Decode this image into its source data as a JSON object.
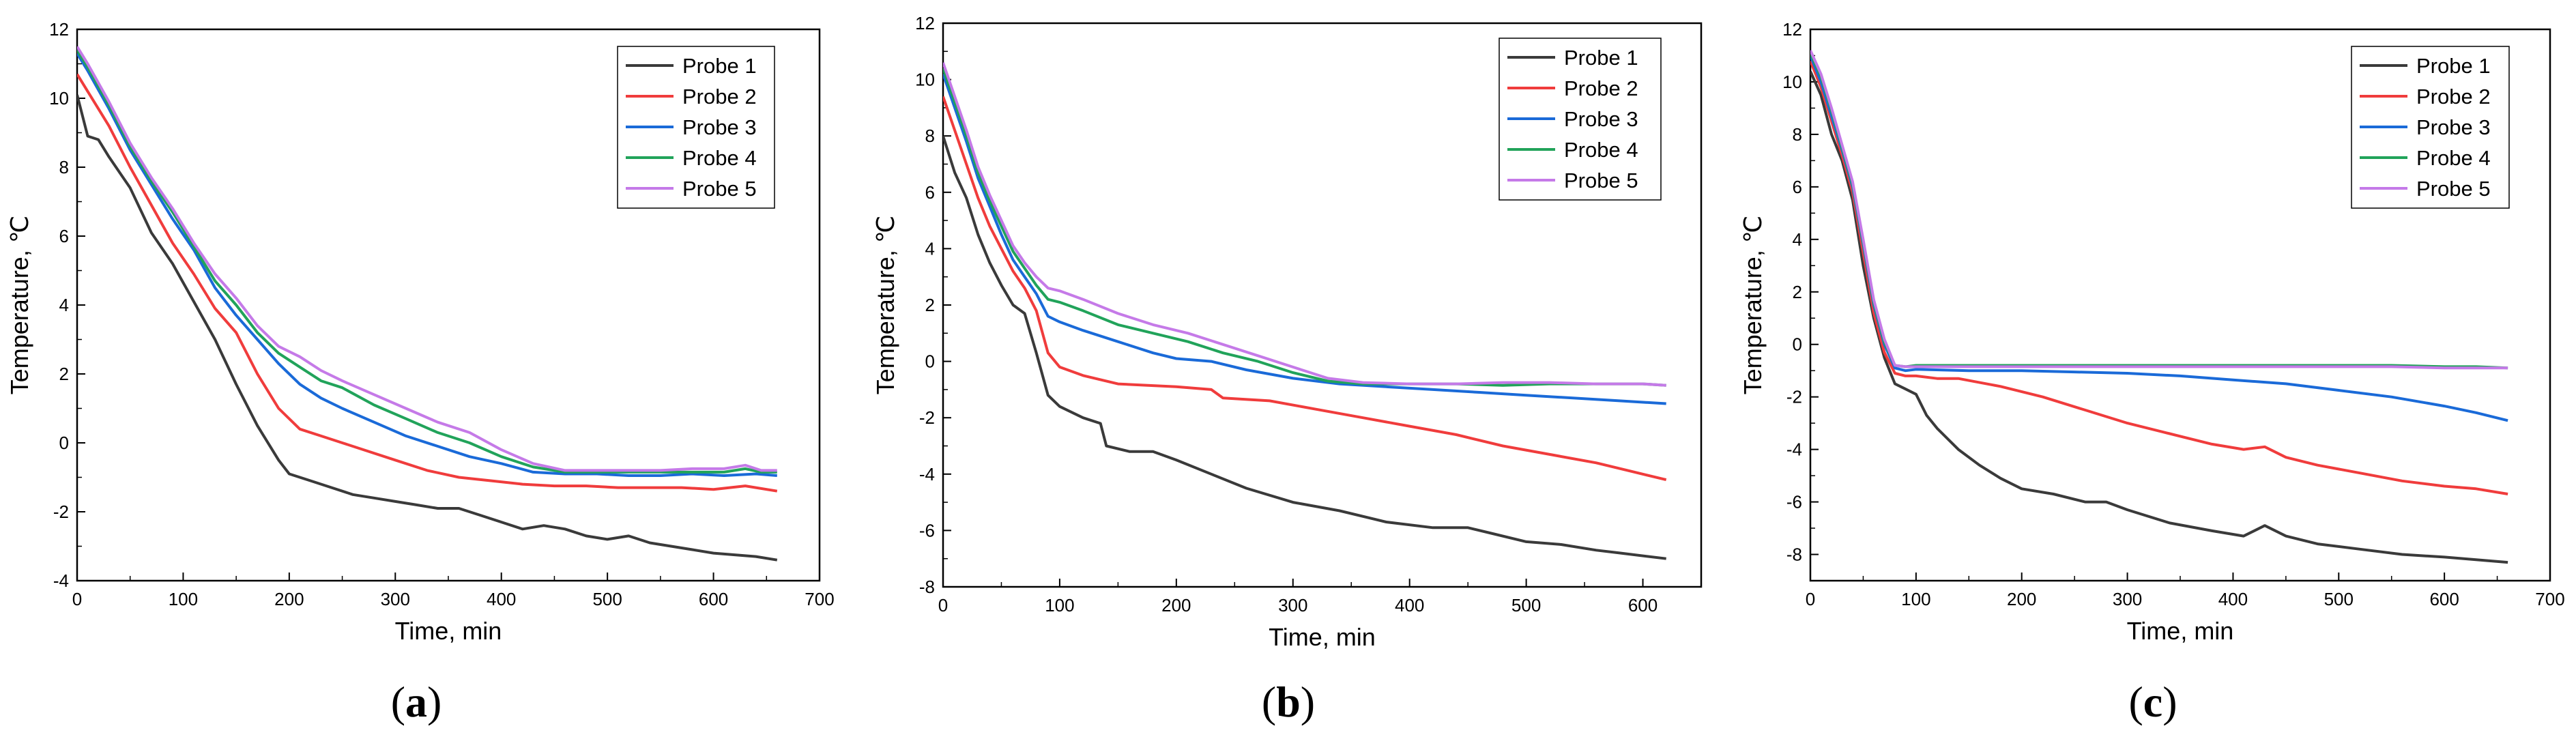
{
  "colors": {
    "probe1": "#3a3a3a",
    "probe2": "#f03c3c",
    "probe3": "#1a6ad8",
    "probe4": "#21a35a",
    "probe5": "#c57ae8"
  },
  "chart_data": [
    {
      "type": "line",
      "panel_label": "a",
      "xlabel": "Time, min",
      "ylabel": "Temperature, ℃",
      "xlim": [
        0,
        700
      ],
      "ylim": [
        -4,
        12
      ],
      "xticks": [
        0,
        100,
        200,
        300,
        400,
        500,
        600,
        700
      ],
      "yticks": [
        -4,
        -2,
        0,
        2,
        4,
        6,
        8,
        10,
        12
      ],
      "legend_position": "top-right",
      "series": [
        {
          "name": "Probe 1",
          "color_key": "probe1",
          "x": [
            0,
            10,
            20,
            30,
            50,
            70,
            90,
            110,
            130,
            150,
            170,
            190,
            200,
            210,
            220,
            240,
            260,
            280,
            300,
            320,
            340,
            360,
            380,
            400,
            420,
            440,
            460,
            480,
            500,
            520,
            540,
            560,
            580,
            600,
            620,
            640,
            660
          ],
          "y": [
            10.1,
            8.9,
            8.8,
            8.3,
            7.4,
            6.1,
            5.2,
            4.1,
            3.0,
            1.7,
            0.5,
            -0.5,
            -0.9,
            -1.0,
            -1.1,
            -1.3,
            -1.5,
            -1.6,
            -1.7,
            -1.8,
            -1.9,
            -1.9,
            -2.1,
            -2.3,
            -2.5,
            -2.4,
            -2.5,
            -2.7,
            -2.8,
            -2.7,
            -2.9,
            -3.0,
            -3.1,
            -3.2,
            -3.25,
            -3.3,
            -3.4
          ]
        },
        {
          "name": "Probe 2",
          "color_key": "probe2",
          "x": [
            0,
            10,
            30,
            50,
            70,
            90,
            110,
            130,
            150,
            170,
            190,
            210,
            230,
            250,
            270,
            300,
            330,
            360,
            390,
            420,
            450,
            480,
            510,
            540,
            570,
            600,
            630,
            660
          ],
          "y": [
            10.7,
            10.2,
            9.2,
            8.0,
            6.9,
            5.8,
            4.9,
            3.9,
            3.2,
            2.0,
            1.0,
            0.4,
            0.2,
            0.0,
            -0.2,
            -0.5,
            -0.8,
            -1.0,
            -1.1,
            -1.2,
            -1.25,
            -1.25,
            -1.3,
            -1.3,
            -1.3,
            -1.35,
            -1.25,
            -1.4
          ]
        },
        {
          "name": "Probe 3",
          "color_key": "probe3",
          "x": [
            0,
            10,
            30,
            50,
            70,
            90,
            110,
            130,
            150,
            170,
            190,
            210,
            230,
            250,
            280,
            310,
            340,
            370,
            400,
            430,
            460,
            490,
            520,
            550,
            580,
            610,
            640,
            660
          ],
          "y": [
            11.3,
            10.8,
            9.7,
            8.5,
            7.5,
            6.5,
            5.6,
            4.5,
            3.7,
            3.0,
            2.3,
            1.7,
            1.3,
            1.0,
            0.6,
            0.2,
            -0.1,
            -0.4,
            -0.6,
            -0.85,
            -0.9,
            -0.9,
            -0.95,
            -0.95,
            -0.9,
            -0.95,
            -0.9,
            -0.95
          ]
        },
        {
          "name": "Probe 4",
          "color_key": "probe4",
          "x": [
            0,
            10,
            30,
            50,
            70,
            90,
            110,
            130,
            150,
            170,
            190,
            210,
            230,
            250,
            280,
            310,
            340,
            370,
            400,
            430,
            460,
            490,
            520,
            550,
            580,
            610,
            630,
            645,
            660
          ],
          "y": [
            11.4,
            10.9,
            9.8,
            8.6,
            7.6,
            6.7,
            5.7,
            4.7,
            4.0,
            3.2,
            2.6,
            2.2,
            1.8,
            1.6,
            1.1,
            0.7,
            0.3,
            0.0,
            -0.4,
            -0.7,
            -0.85,
            -0.85,
            -0.85,
            -0.85,
            -0.85,
            -0.85,
            -0.75,
            -0.85,
            -0.85
          ]
        },
        {
          "name": "Probe 5",
          "color_key": "probe5",
          "x": [
            0,
            10,
            30,
            50,
            70,
            90,
            110,
            130,
            150,
            170,
            190,
            210,
            230,
            250,
            280,
            310,
            340,
            370,
            400,
            430,
            460,
            490,
            520,
            550,
            580,
            610,
            630,
            645,
            660
          ],
          "y": [
            11.5,
            11.0,
            9.9,
            8.7,
            7.7,
            6.8,
            5.8,
            4.9,
            4.2,
            3.4,
            2.8,
            2.5,
            2.1,
            1.8,
            1.4,
            1.0,
            0.6,
            0.3,
            -0.2,
            -0.6,
            -0.8,
            -0.8,
            -0.8,
            -0.8,
            -0.75,
            -0.75,
            -0.65,
            -0.8,
            -0.8
          ]
        }
      ]
    },
    {
      "type": "line",
      "panel_label": "b",
      "xlabel": "Time, min",
      "ylabel": "Temperature, ℃",
      "xlim": [
        0,
        650
      ],
      "ylim": [
        -8,
        12
      ],
      "xticks": [
        0,
        100,
        200,
        300,
        400,
        500,
        600
      ],
      "yticks": [
        -8,
        -6,
        -4,
        -2,
        0,
        2,
        4,
        6,
        8,
        10,
        12
      ],
      "legend_position": "top-right",
      "series": [
        {
          "name": "Probe 1",
          "color_key": "probe1",
          "x": [
            0,
            10,
            20,
            30,
            40,
            50,
            60,
            70,
            80,
            90,
            100,
            120,
            135,
            140,
            160,
            180,
            200,
            230,
            260,
            300,
            340,
            380,
            420,
            450,
            470,
            500,
            530,
            560,
            580,
            620
          ],
          "y": [
            8.0,
            6.7,
            5.8,
            4.5,
            3.5,
            2.7,
            2.0,
            1.7,
            0.3,
            -1.2,
            -1.6,
            -2.0,
            -2.2,
            -3.0,
            -3.2,
            -3.2,
            -3.5,
            -4.0,
            -4.5,
            -5.0,
            -5.3,
            -5.7,
            -5.9,
            -5.9,
            -6.1,
            -6.4,
            -6.5,
            -6.7,
            -6.8,
            -7.0
          ]
        },
        {
          "name": "Probe 2",
          "color_key": "probe2",
          "x": [
            0,
            10,
            20,
            30,
            40,
            50,
            60,
            70,
            80,
            90,
            100,
            120,
            150,
            200,
            230,
            240,
            280,
            320,
            360,
            400,
            440,
            480,
            520,
            560,
            590,
            620
          ],
          "y": [
            9.4,
            8.2,
            7.0,
            5.8,
            4.8,
            4.0,
            3.2,
            2.6,
            1.8,
            0.3,
            -0.2,
            -0.5,
            -0.8,
            -0.9,
            -1.0,
            -1.3,
            -1.4,
            -1.7,
            -2.0,
            -2.3,
            -2.6,
            -3.0,
            -3.3,
            -3.6,
            -3.9,
            -4.2
          ]
        },
        {
          "name": "Probe 3",
          "color_key": "probe3",
          "x": [
            0,
            10,
            20,
            30,
            40,
            50,
            60,
            70,
            80,
            90,
            100,
            120,
            150,
            180,
            200,
            230,
            260,
            300,
            340,
            380,
            420,
            460,
            500,
            540,
            580,
            620
          ],
          "y": [
            10.2,
            9.0,
            7.8,
            6.5,
            5.5,
            4.5,
            3.6,
            3.0,
            2.4,
            1.6,
            1.4,
            1.1,
            0.7,
            0.3,
            0.1,
            0.0,
            -0.3,
            -0.6,
            -0.8,
            -0.9,
            -1.0,
            -1.1,
            -1.2,
            -1.3,
            -1.4,
            -1.5
          ]
        },
        {
          "name": "Probe 4",
          "color_key": "probe4",
          "x": [
            0,
            10,
            20,
            30,
            40,
            50,
            60,
            70,
            80,
            90,
            100,
            120,
            150,
            180,
            210,
            240,
            270,
            300,
            330,
            360,
            400,
            440,
            480,
            520,
            560,
            600,
            620
          ],
          "y": [
            10.4,
            9.2,
            8.0,
            6.7,
            5.7,
            4.8,
            3.9,
            3.3,
            2.7,
            2.2,
            2.1,
            1.8,
            1.3,
            1.0,
            0.7,
            0.3,
            0.0,
            -0.4,
            -0.7,
            -0.8,
            -0.8,
            -0.8,
            -0.85,
            -0.8,
            -0.8,
            -0.8,
            -0.85
          ]
        },
        {
          "name": "Probe 5",
          "color_key": "probe5",
          "x": [
            0,
            10,
            20,
            30,
            40,
            50,
            60,
            70,
            80,
            90,
            100,
            120,
            150,
            180,
            210,
            240,
            270,
            300,
            330,
            360,
            400,
            440,
            480,
            520,
            560,
            600,
            620
          ],
          "y": [
            10.6,
            9.4,
            8.2,
            6.9,
            5.9,
            5.0,
            4.1,
            3.5,
            3.0,
            2.6,
            2.5,
            2.2,
            1.7,
            1.3,
            1.0,
            0.6,
            0.2,
            -0.2,
            -0.6,
            -0.75,
            -0.8,
            -0.8,
            -0.75,
            -0.75,
            -0.8,
            -0.8,
            -0.85
          ]
        }
      ]
    },
    {
      "type": "line",
      "panel_label": "c",
      "xlabel": "Time, min",
      "ylabel": "Temperature, ℃",
      "xlim": [
        0,
        700
      ],
      "ylim": [
        -9,
        12
      ],
      "xticks": [
        0,
        100,
        200,
        300,
        400,
        500,
        600,
        700
      ],
      "yticks": [
        -8,
        -6,
        -4,
        -2,
        0,
        2,
        4,
        6,
        8,
        10,
        12
      ],
      "legend_position": "top-right",
      "series": [
        {
          "name": "Probe 1",
          "color_key": "probe1",
          "x": [
            0,
            10,
            20,
            30,
            40,
            50,
            60,
            70,
            80,
            90,
            100,
            110,
            120,
            140,
            160,
            180,
            200,
            230,
            260,
            280,
            300,
            340,
            380,
            410,
            430,
            450,
            480,
            520,
            560,
            600,
            630,
            660
          ],
          "y": [
            10.4,
            9.5,
            8.0,
            7.0,
            5.5,
            3.0,
            1.0,
            -0.5,
            -1.5,
            -1.7,
            -1.9,
            -2.7,
            -3.2,
            -4.0,
            -4.6,
            -5.1,
            -5.5,
            -5.7,
            -6.0,
            -6.0,
            -6.3,
            -6.8,
            -7.1,
            -7.3,
            -6.9,
            -7.3,
            -7.6,
            -7.8,
            -8.0,
            -8.1,
            -8.2,
            -8.3
          ]
        },
        {
          "name": "Probe 2",
          "color_key": "probe2",
          "x": [
            0,
            10,
            20,
            30,
            40,
            50,
            60,
            70,
            80,
            90,
            100,
            120,
            140,
            180,
            220,
            260,
            300,
            340,
            380,
            410,
            430,
            450,
            480,
            520,
            560,
            600,
            630,
            660
          ],
          "y": [
            10.8,
            9.8,
            8.5,
            7.2,
            5.8,
            3.5,
            1.2,
            -0.3,
            -1.1,
            -1.2,
            -1.2,
            -1.3,
            -1.3,
            -1.6,
            -2.0,
            -2.5,
            -3.0,
            -3.4,
            -3.8,
            -4.0,
            -3.9,
            -4.3,
            -4.6,
            -4.9,
            -5.2,
            -5.4,
            -5.5,
            -5.7
          ]
        },
        {
          "name": "Probe 3",
          "color_key": "probe3",
          "x": [
            0,
            10,
            20,
            30,
            40,
            50,
            60,
            70,
            80,
            90,
            100,
            150,
            200,
            250,
            300,
            350,
            400,
            450,
            500,
            550,
            600,
            630,
            660
          ],
          "y": [
            11.0,
            10.0,
            8.7,
            7.4,
            6.0,
            3.8,
            1.5,
            0.0,
            -0.9,
            -1.0,
            -0.95,
            -1.0,
            -1.0,
            -1.05,
            -1.1,
            -1.2,
            -1.35,
            -1.5,
            -1.75,
            -2.0,
            -2.35,
            -2.6,
            -2.9
          ]
        },
        {
          "name": "Probe 4",
          "color_key": "probe4",
          "x": [
            0,
            10,
            20,
            30,
            40,
            50,
            60,
            70,
            80,
            90,
            100,
            150,
            200,
            250,
            300,
            350,
            400,
            450,
            500,
            550,
            600,
            630,
            660
          ],
          "y": [
            11.1,
            10.2,
            8.9,
            7.5,
            6.1,
            3.9,
            1.6,
            0.1,
            -0.8,
            -0.85,
            -0.8,
            -0.8,
            -0.8,
            -0.8,
            -0.8,
            -0.8,
            -0.8,
            -0.8,
            -0.8,
            -0.8,
            -0.85,
            -0.85,
            -0.9
          ]
        },
        {
          "name": "Probe 5",
          "color_key": "probe5",
          "x": [
            0,
            10,
            20,
            30,
            40,
            50,
            60,
            70,
            80,
            90,
            100,
            150,
            200,
            250,
            300,
            350,
            400,
            450,
            500,
            550,
            600,
            630,
            660
          ],
          "y": [
            11.2,
            10.3,
            9.0,
            7.6,
            6.2,
            4.0,
            1.7,
            0.2,
            -0.8,
            -0.85,
            -0.85,
            -0.85,
            -0.85,
            -0.85,
            -0.85,
            -0.85,
            -0.85,
            -0.85,
            -0.85,
            -0.85,
            -0.9,
            -0.9,
            -0.9
          ]
        }
      ]
    }
  ]
}
